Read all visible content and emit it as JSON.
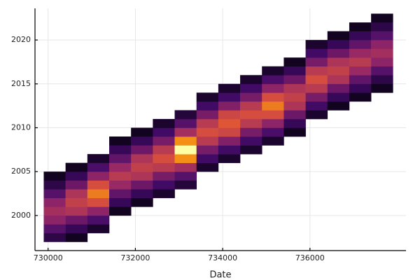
{
  "chart_data": {
    "type": "histogram2d",
    "xlabel": "Date",
    "xbins": [
      729900,
      730400,
      730900,
      731400,
      731900,
      732400,
      732900,
      733400,
      733900,
      734400,
      734900,
      735400,
      735900,
      736400,
      736900,
      737400,
      737900
    ],
    "ybins": [
      1997,
      1998,
      1999,
      2000,
      2001,
      2002,
      2003,
      2004,
      2005,
      2006,
      2007,
      2008,
      2009,
      2010,
      2011,
      2012,
      2013,
      2014,
      2015,
      2016,
      2017,
      2018,
      2019,
      2020,
      2021,
      2022,
      2023
    ],
    "counts": [
      [
        5,
        9,
        14,
        16,
        14,
        9,
        5,
        2,
        0,
        0,
        0,
        0,
        0,
        0,
        0,
        0,
        0,
        0,
        0,
        0,
        0,
        0,
        0,
        0,
        0,
        0
      ],
      [
        2,
        6,
        11,
        17,
        19,
        17,
        11,
        6,
        2,
        0,
        0,
        0,
        0,
        0,
        0,
        0,
        0,
        0,
        0,
        0,
        0,
        0,
        0,
        0,
        0,
        0
      ],
      [
        0,
        3,
        8,
        14,
        21,
        24,
        21,
        14,
        8,
        3,
        0,
        0,
        0,
        0,
        0,
        0,
        0,
        0,
        0,
        0,
        0,
        0,
        0,
        0,
        0,
        0
      ],
      [
        0,
        0,
        0,
        2,
        6,
        10,
        15,
        18,
        15,
        10,
        6,
        2,
        0,
        0,
        0,
        0,
        0,
        0,
        0,
        0,
        0,
        0,
        0,
        0,
        0,
        0
      ],
      [
        0,
        0,
        0,
        0,
        2,
        6,
        11,
        17,
        19,
        17,
        11,
        6,
        2,
        0,
        0,
        0,
        0,
        0,
        0,
        0,
        0,
        0,
        0,
        0,
        0,
        0
      ],
      [
        0,
        0,
        0,
        0,
        0,
        3,
        7,
        12,
        18,
        21,
        18,
        12,
        7,
        3,
        0,
        0,
        0,
        0,
        0,
        0,
        0,
        0,
        0,
        0,
        0,
        0
      ],
      [
        0,
        0,
        0,
        0,
        0,
        0,
        4,
        9,
        16,
        25,
        29,
        25,
        16,
        9,
        4,
        0,
        0,
        0,
        0,
        0,
        0,
        0,
        0,
        0,
        0,
        0
      ],
      [
        0,
        0,
        0,
        0,
        0,
        0,
        0,
        0,
        3,
        7,
        12,
        18,
        21,
        18,
        12,
        7,
        3,
        0,
        0,
        0,
        0,
        0,
        0,
        0,
        0,
        0
      ],
      [
        0,
        0,
        0,
        0,
        0,
        0,
        0,
        0,
        0,
        3,
        7,
        13,
        20,
        22,
        20,
        13,
        7,
        3,
        0,
        0,
        0,
        0,
        0,
        0,
        0,
        0
      ],
      [
        0,
        0,
        0,
        0,
        0,
        0,
        0,
        0,
        0,
        0,
        3,
        7,
        12,
        18,
        21,
        18,
        12,
        7,
        3,
        0,
        0,
        0,
        0,
        0,
        0,
        0
      ],
      [
        0,
        0,
        0,
        0,
        0,
        0,
        0,
        0,
        0,
        0,
        0,
        3,
        8,
        14,
        21,
        24,
        21,
        14,
        8,
        3,
        0,
        0,
        0,
        0,
        0,
        0
      ],
      [
        0,
        0,
        0,
        0,
        0,
        0,
        0,
        0,
        0,
        0,
        0,
        0,
        2,
        6,
        11,
        17,
        19,
        17,
        11,
        6,
        2,
        0,
        0,
        0,
        0,
        0
      ],
      [
        0,
        0,
        0,
        0,
        0,
        0,
        0,
        0,
        0,
        0,
        0,
        0,
        0,
        0,
        3,
        7,
        12,
        18,
        21,
        18,
        12,
        7,
        3,
        0,
        0,
        0
      ],
      [
        0,
        0,
        0,
        0,
        0,
        0,
        0,
        0,
        0,
        0,
        0,
        0,
        0,
        0,
        0,
        2,
        6,
        11,
        17,
        19,
        17,
        11,
        6,
        2,
        0,
        0
      ],
      [
        0,
        0,
        0,
        0,
        0,
        0,
        0,
        0,
        0,
        0,
        0,
        0,
        0,
        0,
        0,
        0,
        2,
        6,
        10,
        15,
        18,
        15,
        10,
        6,
        2,
        0
      ],
      [
        0,
        0,
        0,
        0,
        0,
        0,
        0,
        0,
        0,
        0,
        0,
        0,
        0,
        0,
        0,
        0,
        0,
        2,
        5,
        9,
        14,
        16,
        14,
        9,
        5,
        2
      ]
    ],
    "colormap": "inferno",
    "xlim": [
      729700,
      738200
    ],
    "xticks": [
      730000,
      732000,
      734000,
      736000
    ],
    "ylim": [
      1996,
      2023.6
    ],
    "yticks": [
      2000,
      2005,
      2010,
      2015,
      2020
    ],
    "grid": true
  }
}
